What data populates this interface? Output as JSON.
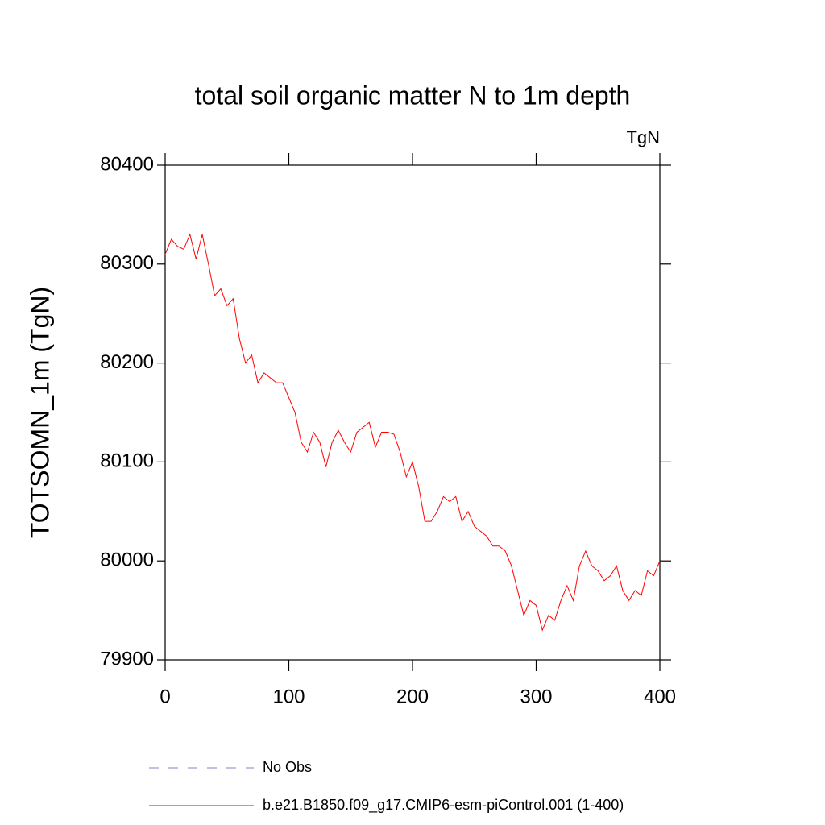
{
  "chart_data": {
    "type": "line",
    "title": "total soil organic matter N to 1m depth",
    "units_label": "TgN",
    "ylabel": "TOTSOMN_1m  (TgN)",
    "xlim": [
      0,
      400
    ],
    "xticks": [
      0,
      100,
      200,
      300,
      400
    ],
    "ylim": [
      79900,
      80400
    ],
    "yticks": [
      79900,
      80000,
      80100,
      80200,
      80300,
      80400
    ],
    "grid": false,
    "x": [
      0,
      5,
      10,
      15,
      20,
      25,
      30,
      35,
      40,
      45,
      50,
      55,
      60,
      65,
      70,
      75,
      80,
      85,
      90,
      95,
      100,
      105,
      110,
      115,
      120,
      125,
      130,
      135,
      140,
      145,
      150,
      155,
      160,
      165,
      170,
      175,
      180,
      185,
      190,
      195,
      200,
      205,
      210,
      215,
      220,
      225,
      230,
      235,
      240,
      245,
      250,
      255,
      260,
      265,
      270,
      275,
      280,
      285,
      290,
      295,
      300,
      305,
      310,
      315,
      320,
      325,
      330,
      335,
      340,
      345,
      350,
      355,
      360,
      365,
      370,
      375,
      380,
      385,
      390,
      395,
      400
    ],
    "series": [
      {
        "name": "No Obs",
        "color": "#8080c0",
        "dashed": true,
        "values": [
          null,
          null,
          null,
          null,
          null,
          null,
          null,
          null,
          null,
          null,
          null,
          null,
          null,
          null,
          null,
          null,
          null,
          null,
          null,
          null,
          null,
          null,
          null,
          null,
          null,
          null,
          null,
          null,
          null,
          null,
          null,
          null,
          null,
          null,
          null,
          null,
          null,
          null,
          null,
          null,
          null,
          null,
          null,
          null,
          null,
          null,
          null,
          null,
          null,
          null,
          null,
          null,
          null,
          null,
          null,
          null,
          null,
          null,
          null,
          null,
          null,
          null,
          null,
          null,
          null,
          null,
          null,
          null,
          null,
          null,
          null,
          null,
          null,
          null,
          null,
          null,
          null,
          null,
          null,
          null,
          null
        ]
      },
      {
        "name": "b.e21.B1850.f09_g17.CMIP6-esm-piControl.001 (1-400)",
        "color": "#ff0000",
        "dashed": false,
        "values": [
          80310,
          80325,
          80318,
          80315,
          80330,
          80305,
          80330,
          80300,
          80268,
          80275,
          80258,
          80265,
          80225,
          80200,
          80208,
          80180,
          80190,
          80185,
          80180,
          80180,
          80165,
          80150,
          80120,
          80110,
          80130,
          80120,
          80095,
          80120,
          80132,
          80120,
          80110,
          80130,
          80135,
          80140,
          80115,
          80130,
          80130,
          80128,
          80110,
          80085,
          80100,
          80075,
          80040,
          80040,
          80050,
          80065,
          80060,
          80065,
          80040,
          80050,
          80035,
          80030,
          80025,
          80015,
          80015,
          80010,
          79995,
          79970,
          79945,
          79960,
          79955,
          79930,
          79945,
          79940,
          79960,
          79975,
          79960,
          79995,
          80010,
          79995,
          79990,
          79980,
          79985,
          79995,
          79970,
          79960,
          79970,
          79965,
          79990,
          79985,
          80000
        ]
      }
    ]
  }
}
